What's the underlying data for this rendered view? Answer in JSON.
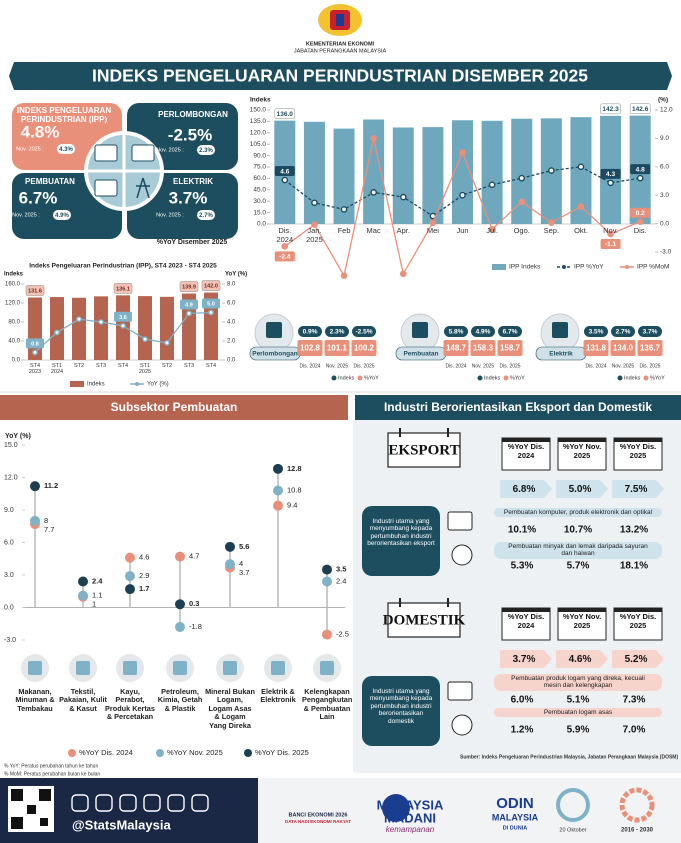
{
  "header": {
    "ministry": "KEMENTERIAN EKONOMI",
    "department": "JABATAN PERANGKAAN MALAYSIA"
  },
  "title": "INDEKS PENGELUARAN PERINDUSTRIAN DISEMBER 2025",
  "kpis": [
    {
      "label": "INDEKS PENGELUARAN PERINDUSTRIAN (IPP)",
      "value": "4.8%",
      "prev_label": "Nov. 2025 :",
      "prev_value": "4.3%"
    },
    {
      "label": "PERLOMBONGAN",
      "value": "-2.5%",
      "prev_label": "Nov. 2025 :",
      "prev_value": "2.3%"
    },
    {
      "label": "PEMBUATAN",
      "value": "6.7%",
      "prev_label": "Nov. 2025 :",
      "prev_value": "4.9%"
    },
    {
      "label": "ELEKTRIK",
      "value": "3.7%",
      "prev_label": "Nov. 2025 :",
      "prev_value": "2.7%"
    }
  ],
  "kpi_note": "%YoY Disember 2025",
  "chart_data": [
    {
      "type": "combo",
      "y_label": "Indeks",
      "y2_label": "(%)",
      "categories": [
        "Dis. 2024",
        "Jan. 2025",
        "Feb",
        "Mac",
        "Apr.",
        "Mei",
        "Jun",
        "Jul.",
        "Ogo.",
        "Sep.",
        "Okt.",
        "Nov.",
        "Dis."
      ],
      "ylim": [
        0,
        150
      ],
      "yticks": [
        {
          "value": 0,
          "label": "0.0"
        },
        {
          "value": 15,
          "label": "15.0"
        },
        {
          "value": 30,
          "label": "30.0"
        },
        {
          "value": 45,
          "label": "45.0"
        },
        {
          "value": 60,
          "label": "60.0"
        },
        {
          "value": 75,
          "label": "75.0"
        },
        {
          "value": 90,
          "label": "90.0"
        },
        {
          "value": 105,
          "label": "105.0"
        },
        {
          "value": 120,
          "label": "120.0"
        },
        {
          "value": 135,
          "label": "135.0"
        },
        {
          "value": 150,
          "label": "150.0"
        }
      ],
      "y2lim": [
        -3,
        12
      ],
      "y2ticks": [
        {
          "value": -3,
          "label": "-3.0"
        },
        {
          "value": 0,
          "label": "0.0"
        },
        {
          "value": 3,
          "label": "3.0"
        },
        {
          "value": 6,
          "label": "6.0"
        },
        {
          "value": 9,
          "label": "9.0"
        },
        {
          "value": 12,
          "label": "12.0"
        }
      ],
      "series": [
        {
          "name": "IPP Indeks",
          "type": "bar",
          "color": "#6fa8bd",
          "values": [
            136.0,
            134.5,
            125.5,
            137.5,
            127.0,
            127.5,
            136.5,
            135.8,
            138.5,
            139.0,
            140.6,
            142.3,
            142.6
          ],
          "value_labels": [
            "136.0",
            null,
            null,
            null,
            null,
            null,
            null,
            null,
            null,
            null,
            null,
            "142.3",
            "142.6"
          ]
        },
        {
          "name": "IPP %YoY",
          "type": "line",
          "axis": "y2",
          "line_style": "dashed",
          "color": "#1c4a63",
          "values": [
            4.6,
            2.2,
            1.5,
            3.3,
            2.8,
            0.8,
            3.0,
            4.1,
            4.8,
            5.6,
            6.0,
            4.3,
            4.8
          ],
          "value_labels": [
            "4.6",
            null,
            null,
            null,
            null,
            null,
            null,
            null,
            null,
            null,
            null,
            "4.3",
            "4.8"
          ]
        },
        {
          "name": "IPP %MoM",
          "type": "line",
          "axis": "y2",
          "line_style": "solid",
          "color": "#e8907a",
          "values": [
            -2.4,
            -0.1,
            -5.5,
            9.0,
            -5.3,
            0.1,
            7.5,
            -0.6,
            2.3,
            0.1,
            1.8,
            -1.1,
            0.2
          ],
          "value_labels": [
            "-2.4",
            null,
            null,
            null,
            null,
            null,
            null,
            null,
            null,
            null,
            null,
            "-1.1",
            "0.2"
          ]
        }
      ]
    },
    {
      "type": "combo",
      "title": "Indeks Pengeluaran Perindustrian (IPP), ST4 2023 - ST4 2025",
      "y_label": "Indeks",
      "y2_label": "YoY (%)",
      "categories": [
        "ST4 2023",
        "ST1 2024",
        "ST2",
        "ST3",
        "ST4",
        "ST1 2025",
        "ST2",
        "ST3",
        "ST4"
      ],
      "ylim": [
        0,
        160
      ],
      "yticks": [
        {
          "value": 0,
          "label": "0.0"
        },
        {
          "value": 40,
          "label": "40.0"
        },
        {
          "value": 80,
          "label": "80.0"
        },
        {
          "value": 120,
          "label": "120.0"
        },
        {
          "value": 160,
          "label": "160.0"
        }
      ],
      "y2lim": [
        0,
        8
      ],
      "y2ticks": [
        {
          "value": 0,
          "label": "0.0"
        },
        {
          "value": 2,
          "label": "2.0"
        },
        {
          "value": 4,
          "label": "4.0"
        },
        {
          "value": 6,
          "label": "6.0"
        },
        {
          "value": 8,
          "label": "8.0"
        }
      ],
      "series": [
        {
          "name": "Indeks",
          "type": "bar",
          "color": "#b5654f",
          "values": [
            131.6,
            132.5,
            131.0,
            134.0,
            136.1,
            134.5,
            133.0,
            139.9,
            142.0
          ],
          "value_labels": [
            "131.6",
            null,
            null,
            null,
            "136.1",
            null,
            null,
            "139.9",
            "142.0"
          ]
        },
        {
          "name": "YoY (%)",
          "type": "line",
          "axis": "y2",
          "line_style": "solid",
          "color": "#7fb1c7",
          "values": [
            0.8,
            2.9,
            4.3,
            4.0,
            3.6,
            2.2,
            1.8,
            4.9,
            5.0
          ],
          "value_labels": [
            "0.8",
            null,
            null,
            null,
            "3.6",
            null,
            null,
            "4.9",
            "5.0"
          ]
        }
      ]
    },
    {
      "type": "dot",
      "title": "Subsektor Pembuatan",
      "y_label": "YoY (%)",
      "categories": [
        "Makanan, Minuman & Tembakau",
        "Tekstil, Pakaian, Kulit & Kasut",
        "Kayu, Perabot, Produk Kertas & Percetakan",
        "Petroleum, Kimia, Getah & Plastik",
        "Mineral Bukan Logam, Logam Asas & Logam Yang Direka",
        "Elektrik & Elektronik",
        "Kelengkapan Pengangkutan & Pembuatan Lain"
      ],
      "ylim": [
        -3,
        15
      ],
      "yticks": [
        {
          "value": -3,
          "label": "-3.0"
        },
        {
          "value": 0,
          "label": "0.0"
        },
        {
          "value": 3,
          "label": "3.0"
        },
        {
          "value": 6,
          "label": "6.0"
        },
        {
          "value": 9,
          "label": "9.0"
        },
        {
          "value": 12,
          "label": "12.0"
        },
        {
          "value": 15,
          "label": "15.0"
        }
      ],
      "series": [
        {
          "name": "%YoY Dis. 2024",
          "color": "#e8907a",
          "values": [
            7.7,
            1.0,
            4.6,
            4.7,
            3.7,
            9.4,
            -2.5
          ]
        },
        {
          "name": "%YoY Nov. 2025",
          "color": "#7fb1c7",
          "values": [
            8.0,
            1.1,
            2.9,
            -1.8,
            4.0,
            10.8,
            2.4
          ]
        },
        {
          "name": "%YoY Dis. 2025",
          "color": "#1c3f52",
          "values": [
            11.2,
            2.4,
            1.7,
            0.3,
            5.6,
            12.8,
            3.5
          ]
        }
      ]
    }
  ],
  "sectors": [
    {
      "name": "Perlombongan",
      "yoy": [
        "0.9%",
        "2.3%",
        "-2.5%"
      ],
      "index": [
        "102.8",
        "101.1",
        "100.2"
      ]
    },
    {
      "name": "Pembuatan",
      "yoy": [
        "5.8%",
        "4.9%",
        "6.7%"
      ],
      "index": [
        "148.7",
        "158.3",
        "158.7"
      ]
    },
    {
      "name": "Elektrik",
      "yoy": [
        "3.5%",
        "2.7%",
        "3.7%"
      ],
      "index": [
        "131.8",
        "134.0",
        "136.7"
      ]
    }
  ],
  "sector_periods": [
    "Dis. 2024",
    "Nov. 2025",
    "Dis. 2025"
  ],
  "sector_legend": [
    "Indeks",
    "%YoY"
  ],
  "footnotes": [
    "% YoY: Peratus perubahan tahun ke tahun",
    "% MoM: Peratus perubahan bulan ke bulan"
  ],
  "trade": {
    "title": "Industri Berorientasikan Eksport dan Domestik",
    "headers": [
      "%YoY Dis. 2024",
      "%YoY Nov. 2025",
      "%YoY Dis. 2025"
    ],
    "groups": [
      {
        "name": "EKSPORT",
        "values": [
          "6.8%",
          "5.0%",
          "7.5%"
        ],
        "description": "Industri utama yang menyumbang kepada pertumbuhan industri berorientasikan eksport",
        "items": [
          {
            "label": "Pembuatan komputer, produk elektronik dan optikal",
            "values": [
              "10.1%",
              "10.7%",
              "13.2%"
            ]
          },
          {
            "label": "Pembuatan minyak dan lemak daripada sayuran dan haiwan",
            "values": [
              "5.3%",
              "5.7%",
              "18.1%"
            ]
          }
        ]
      },
      {
        "name": "DOMESTIK",
        "values": [
          "3.7%",
          "4.6%",
          "5.2%"
        ],
        "description": "Industri utama yang menyumbang kepada pertumbuhan industri berorientasikan domestik",
        "items": [
          {
            "label": "Pembuatan produk logam yang direka, kecuali mesin dan kelengkapan",
            "values": [
              "6.0%",
              "5.1%",
              "7.3%"
            ]
          },
          {
            "label": "Pembuatan logam asas",
            "values": [
              "1.2%",
              "5.9%",
              "7.0%"
            ]
          }
        ]
      }
    ],
    "source": "Sumber: Indeks Pengeluaran Perindustrian Malaysia, Jabatan Perangkaan Malaysia (DOSM)"
  },
  "footer": {
    "handle": "@StatsMalaysia",
    "logos": [
      "BANCI EKONOMI 2026",
      "DATA NADI EKONOMI RAKYAT",
      "MALAYSIA",
      "MADANI",
      "kemampanan",
      "ODIN",
      "MALAYSIA",
      "DI DUNIA",
      "20 Oktober",
      "2016 - 2030"
    ]
  }
}
